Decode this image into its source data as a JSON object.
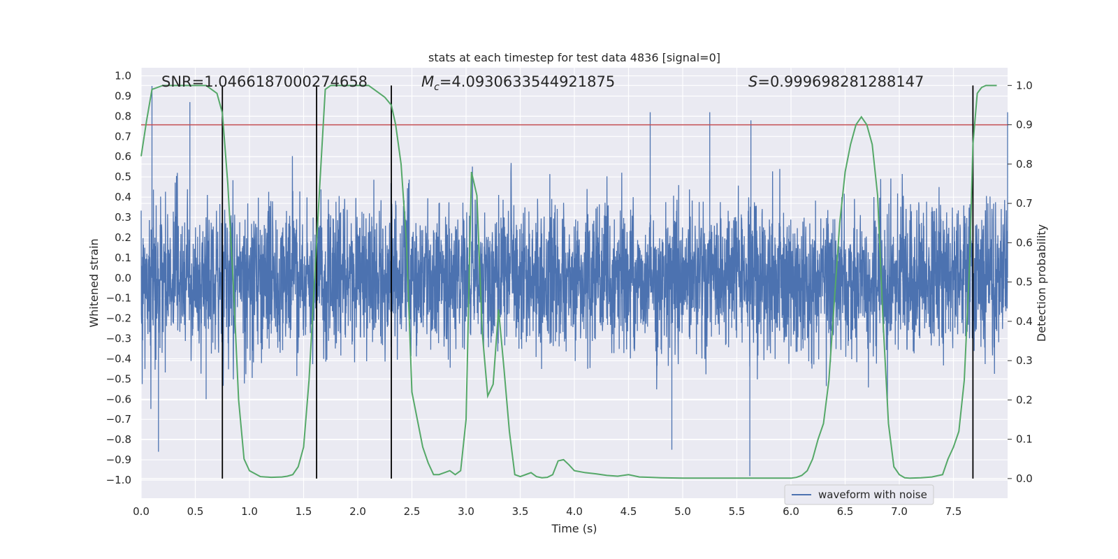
{
  "chart_data": {
    "type": "line",
    "title": "stats at each timestep for test data 4836 [signal=0]",
    "xlabel": "Time (s)",
    "ylabel_left": "Whitened strain",
    "ylabel_right": "Detection probability",
    "xlim": [
      0.0,
      8.0
    ],
    "ylim_left": [
      -1.09,
      1.04
    ],
    "ylim_right": [
      -0.05,
      1.045
    ],
    "x_ticks": [
      "0.0",
      "0.5",
      "1.0",
      "1.5",
      "2.0",
      "2.5",
      "3.0",
      "3.5",
      "4.0",
      "4.5",
      "5.0",
      "5.5",
      "6.0",
      "6.5",
      "7.0",
      "7.5"
    ],
    "y_ticks_left": [
      "1.0",
      "0.9",
      "0.8",
      "0.7",
      "0.6",
      "0.5",
      "0.4",
      "0.3",
      "0.2",
      "0.1",
      "0.0",
      "-0.1",
      "-0.2",
      "-0.3",
      "-0.4",
      "-0.5",
      "-0.6",
      "-0.7",
      "-0.8",
      "-0.9",
      "-1.0"
    ],
    "y_ticks_right": [
      "1.0",
      "0.9",
      "0.8",
      "0.7",
      "0.6",
      "0.5",
      "0.4",
      "0.3",
      "0.2",
      "0.1",
      "0.0"
    ],
    "annotations": {
      "snr": "SNR=1.0466187000274658",
      "mc_label": "M",
      "mc_sub": "c",
      "mc_value": "=4.0930633544921875",
      "s_label": "S",
      "s_value": "=0.999698281288147"
    },
    "threshold": 0.9,
    "vertical_lines": [
      0.75,
      1.62,
      2.31,
      7.68
    ],
    "series": [
      {
        "name": "waveform with noise",
        "color": "#4c72b0",
        "noise_seed": 4836,
        "spikes": [
          [
            0.1,
            0.95
          ],
          [
            0.45,
            0.87
          ],
          [
            0.6,
            -0.6
          ],
          [
            0.16,
            -0.86
          ],
          [
            4.7,
            0.82
          ],
          [
            5.25,
            0.82
          ],
          [
            5.63,
            0.78
          ],
          [
            5.62,
            -0.98
          ],
          [
            4.9,
            -0.85
          ],
          [
            8.0,
            0.82
          ]
        ]
      },
      {
        "name": "detection probability",
        "color": "#55a868",
        "x": [
          0.0,
          0.05,
          0.1,
          0.2,
          0.3,
          0.4,
          0.5,
          0.6,
          0.65,
          0.7,
          0.75,
          0.8,
          0.85,
          0.9,
          0.95,
          1.0,
          1.1,
          1.2,
          1.3,
          1.35,
          1.4,
          1.45,
          1.5,
          1.55,
          1.6,
          1.62,
          1.65,
          1.7,
          1.75,
          1.8,
          1.9,
          2.0,
          2.1,
          2.15,
          2.2,
          2.25,
          2.31,
          2.35,
          2.4,
          2.45,
          2.5,
          2.55,
          2.6,
          2.65,
          2.7,
          2.75,
          2.8,
          2.85,
          2.9,
          2.95,
          3.0,
          3.05,
          3.1,
          3.15,
          3.2,
          3.25,
          3.3,
          3.35,
          3.4,
          3.45,
          3.5,
          3.55,
          3.6,
          3.65,
          3.7,
          3.75,
          3.8,
          3.85,
          3.9,
          3.95,
          4.0,
          4.1,
          4.2,
          4.3,
          4.4,
          4.5,
          4.6,
          4.7,
          4.8,
          5.0,
          5.5,
          6.0,
          6.05,
          6.1,
          6.15,
          6.2,
          6.25,
          6.3,
          6.35,
          6.4,
          6.45,
          6.5,
          6.55,
          6.6,
          6.65,
          6.7,
          6.75,
          6.8,
          6.85,
          6.9,
          6.95,
          7.0,
          7.05,
          7.1,
          7.2,
          7.3,
          7.4,
          7.45,
          7.5,
          7.55,
          7.6,
          7.65,
          7.68,
          7.72,
          7.76,
          7.8,
          7.9
        ],
        "y": [
          0.82,
          0.91,
          0.99,
          1.0,
          1.0,
          1.0,
          1.0,
          1.0,
          0.99,
          0.98,
          0.93,
          0.75,
          0.5,
          0.2,
          0.05,
          0.02,
          0.005,
          0.003,
          0.004,
          0.006,
          0.01,
          0.03,
          0.08,
          0.25,
          0.5,
          0.6,
          0.75,
          0.99,
          1.0,
          1.0,
          1.0,
          1.0,
          1.0,
          0.99,
          0.98,
          0.97,
          0.95,
          0.9,
          0.8,
          0.6,
          0.22,
          0.15,
          0.08,
          0.04,
          0.01,
          0.01,
          0.015,
          0.02,
          0.01,
          0.02,
          0.15,
          0.78,
          0.72,
          0.37,
          0.21,
          0.24,
          0.43,
          0.28,
          0.12,
          0.01,
          0.005,
          0.01,
          0.015,
          0.005,
          0.002,
          0.003,
          0.01,
          0.045,
          0.048,
          0.035,
          0.02,
          0.015,
          0.012,
          0.008,
          0.006,
          0.01,
          0.004,
          0.003,
          0.002,
          0.001,
          0.001,
          0.001,
          0.003,
          0.008,
          0.02,
          0.05,
          0.1,
          0.14,
          0.25,
          0.45,
          0.65,
          0.78,
          0.85,
          0.9,
          0.92,
          0.9,
          0.85,
          0.72,
          0.4,
          0.14,
          0.03,
          0.01,
          0.002,
          0.001,
          0.002,
          0.004,
          0.01,
          0.05,
          0.08,
          0.12,
          0.25,
          0.55,
          0.85,
          0.98,
          0.995,
          1.0,
          1.0
        ]
      }
    ],
    "legend": [
      {
        "label": "waveform with noise",
        "color": "#4c72b0"
      }
    ],
    "threshold_color": "#c44e52",
    "grid": true
  }
}
